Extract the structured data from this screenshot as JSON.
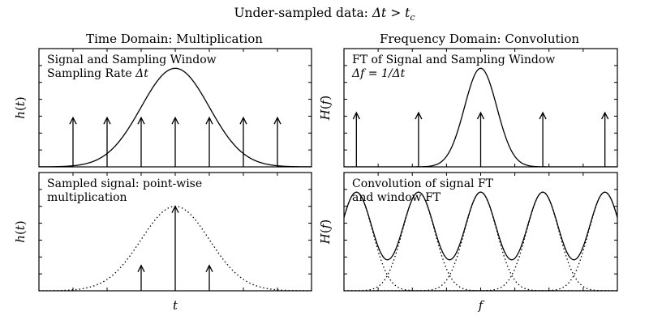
{
  "figure": {
    "suptitle": "Under-sampled data: Δt > t_c",
    "suptitle_parts": [
      {
        "t": "Under-sampled data: ",
        "italic": false
      },
      {
        "t": "Δt",
        "italic": true
      },
      {
        "t": " > ",
        "italic": false
      },
      {
        "t": "t",
        "italic": true
      },
      {
        "t": "c",
        "italic": true,
        "sub": true
      }
    ]
  },
  "chart_data": [
    {
      "id": "time-signal-window",
      "type": "line",
      "column_title": "Time Domain: Multiplication",
      "ylabel": "h(t)",
      "annotation": [
        "Signal and Sampling Window",
        "Sampling Rate Δt"
      ],
      "grid": false,
      "xlim": [
        -4.0,
        4.0
      ],
      "ylim": [
        0,
        1.2
      ],
      "series": [
        {
          "style": "solid",
          "function": "gaussian",
          "center": 0,
          "sigma": 1.0,
          "amplitude": 1.0
        }
      ],
      "arrows": {
        "x": [
          -3,
          -2,
          -1,
          0,
          1,
          2,
          3
        ],
        "height": 0.5
      }
    },
    {
      "id": "time-sampled-signal",
      "type": "line",
      "ylabel": "h(t)",
      "xlabel": "t",
      "annotation": [
        "Sampled signal: point-wise",
        "multiplication"
      ],
      "grid": false,
      "xlim": [
        -4.0,
        4.0
      ],
      "ylim": [
        0,
        1.4
      ],
      "series": [
        {
          "style": "dotted",
          "function": "gaussian",
          "center": 0,
          "sigma": 1.0,
          "amplitude": 1.0
        }
      ],
      "arrows": {
        "x": [
          -1,
          0,
          1
        ],
        "heights": [
          0.3,
          1.0,
          0.3
        ]
      }
    },
    {
      "id": "freq-ft-signal-window",
      "type": "line",
      "column_title": "Frequency Domain: Convolution",
      "ylabel": "H(f)",
      "annotation": [
        "FT of Signal and Sampling Window",
        "Δf = 1/Δt"
      ],
      "grid": false,
      "xlim": [
        -2.2,
        2.2
      ],
      "ylim": [
        0,
        1.2
      ],
      "series": [
        {
          "style": "solid",
          "function": "gaussian",
          "center": 0,
          "sigma": 0.26,
          "amplitude": 1.0
        }
      ],
      "arrows": {
        "x": [
          -2,
          -1,
          0,
          1,
          2
        ],
        "height": 0.55
      }
    },
    {
      "id": "freq-convolution",
      "type": "line",
      "column_title": "",
      "ylabel": "H(f)",
      "xlabel": "f",
      "annotation": [
        "Convolution of signal FT",
        "and window FT"
      ],
      "grid": false,
      "xlim": [
        -2.2,
        2.2
      ],
      "ylim": [
        0,
        1.2
      ],
      "series": [
        {
          "style": "solid",
          "function": "sum_of_gaussians",
          "centers": [
            -2,
            -1,
            0,
            1,
            2
          ],
          "sigma": 0.26,
          "amplitude": 1.0
        },
        {
          "style": "dotted",
          "function": "individual_gaussians",
          "centers": [
            -2,
            -1,
            0,
            1,
            2
          ],
          "sigma": 0.26,
          "amplitude": 1.0
        }
      ]
    }
  ]
}
